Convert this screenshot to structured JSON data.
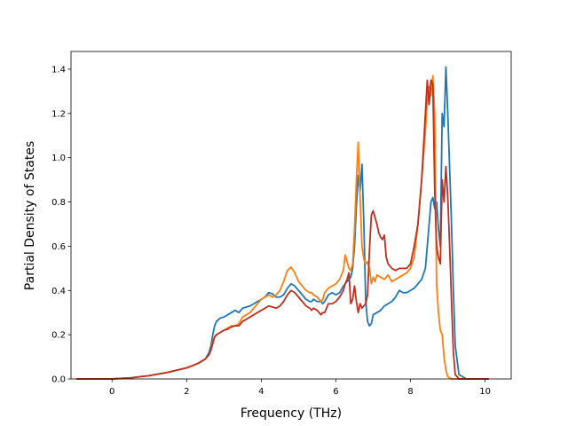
{
  "chart_data": {
    "type": "line",
    "title": "",
    "xlabel": "Frequency (THz)",
    "ylabel": "Partial Density of States",
    "xlim": [
      -1.1,
      10.7
    ],
    "ylim": [
      0.0,
      1.48
    ],
    "xticks": [
      0,
      2,
      4,
      6,
      8,
      10
    ],
    "xtick_labels": [
      "0",
      "2",
      "4",
      "6",
      "8",
      "10"
    ],
    "yticks": [
      0.0,
      0.2,
      0.4,
      0.6,
      0.8,
      1.0,
      1.2,
      1.4
    ],
    "ytick_labels": [
      "0.0",
      "0.2",
      "0.4",
      "0.6",
      "0.8",
      "1.0",
      "1.2",
      "1.4"
    ],
    "grid": false,
    "series": [
      {
        "color": "#1f77b4",
        "points": [
          [
            -0.95,
            0.0
          ],
          [
            0.0,
            0.0
          ],
          [
            0.5,
            0.005
          ],
          [
            1.0,
            0.015
          ],
          [
            1.5,
            0.03
          ],
          [
            2.0,
            0.05
          ],
          [
            2.3,
            0.07
          ],
          [
            2.5,
            0.09
          ],
          [
            2.6,
            0.12
          ],
          [
            2.65,
            0.15
          ],
          [
            2.7,
            0.2
          ],
          [
            2.75,
            0.24
          ],
          [
            2.8,
            0.26
          ],
          [
            2.9,
            0.275
          ],
          [
            3.0,
            0.28
          ],
          [
            3.1,
            0.29
          ],
          [
            3.2,
            0.3
          ],
          [
            3.3,
            0.31
          ],
          [
            3.4,
            0.3
          ],
          [
            3.5,
            0.32
          ],
          [
            3.6,
            0.325
          ],
          [
            3.7,
            0.33
          ],
          [
            3.8,
            0.34
          ],
          [
            3.9,
            0.35
          ],
          [
            4.0,
            0.36
          ],
          [
            4.1,
            0.37
          ],
          [
            4.2,
            0.39
          ],
          [
            4.3,
            0.385
          ],
          [
            4.4,
            0.37
          ],
          [
            4.5,
            0.37
          ],
          [
            4.6,
            0.38
          ],
          [
            4.7,
            0.41
          ],
          [
            4.8,
            0.43
          ],
          [
            4.9,
            0.42
          ],
          [
            5.0,
            0.4
          ],
          [
            5.1,
            0.38
          ],
          [
            5.2,
            0.36
          ],
          [
            5.3,
            0.35
          ],
          [
            5.35,
            0.35
          ],
          [
            5.4,
            0.36
          ],
          [
            5.5,
            0.35
          ],
          [
            5.6,
            0.35
          ],
          [
            5.65,
            0.34
          ],
          [
            5.7,
            0.35
          ],
          [
            5.8,
            0.38
          ],
          [
            5.9,
            0.39
          ],
          [
            6.0,
            0.38
          ],
          [
            6.1,
            0.39
          ],
          [
            6.2,
            0.42
          ],
          [
            6.3,
            0.44
          ],
          [
            6.4,
            0.46
          ],
          [
            6.45,
            0.5
          ],
          [
            6.5,
            0.6
          ],
          [
            6.55,
            0.78
          ],
          [
            6.6,
            0.92
          ],
          [
            6.65,
            0.85
          ],
          [
            6.7,
            0.97
          ],
          [
            6.75,
            0.7
          ],
          [
            6.8,
            0.35
          ],
          [
            6.85,
            0.26
          ],
          [
            6.9,
            0.24
          ],
          [
            6.95,
            0.25
          ],
          [
            7.0,
            0.29
          ],
          [
            7.1,
            0.3
          ],
          [
            7.2,
            0.31
          ],
          [
            7.3,
            0.33
          ],
          [
            7.4,
            0.34
          ],
          [
            7.5,
            0.35
          ],
          [
            7.6,
            0.37
          ],
          [
            7.7,
            0.4
          ],
          [
            7.8,
            0.39
          ],
          [
            7.9,
            0.39
          ],
          [
            8.0,
            0.4
          ],
          [
            8.1,
            0.41
          ],
          [
            8.2,
            0.43
          ],
          [
            8.3,
            0.45
          ],
          [
            8.4,
            0.5
          ],
          [
            8.5,
            0.7
          ],
          [
            8.55,
            0.8
          ],
          [
            8.6,
            0.82
          ],
          [
            8.65,
            0.77
          ],
          [
            8.7,
            0.8
          ],
          [
            8.75,
            0.68
          ],
          [
            8.8,
            0.6
          ],
          [
            8.85,
            1.2
          ],
          [
            8.9,
            1.14
          ],
          [
            8.95,
            1.41
          ],
          [
            9.0,
            1.2
          ],
          [
            9.05,
            0.95
          ],
          [
            9.1,
            0.7
          ],
          [
            9.15,
            0.4
          ],
          [
            9.2,
            0.15
          ],
          [
            9.3,
            0.02
          ],
          [
            9.5,
            0.0
          ],
          [
            10.0,
            0.0
          ],
          [
            10.1,
            0.0
          ]
        ]
      },
      {
        "color": "#ff7f0e",
        "points": [
          [
            -0.95,
            0.0
          ],
          [
            0.0,
            0.0
          ],
          [
            0.5,
            0.005
          ],
          [
            1.0,
            0.015
          ],
          [
            1.5,
            0.03
          ],
          [
            2.0,
            0.05
          ],
          [
            2.3,
            0.07
          ],
          [
            2.5,
            0.09
          ],
          [
            2.6,
            0.11
          ],
          [
            2.65,
            0.13
          ],
          [
            2.7,
            0.17
          ],
          [
            2.75,
            0.19
          ],
          [
            2.8,
            0.2
          ],
          [
            2.9,
            0.21
          ],
          [
            3.0,
            0.22
          ],
          [
            3.1,
            0.23
          ],
          [
            3.2,
            0.24
          ],
          [
            3.3,
            0.24
          ],
          [
            3.4,
            0.25
          ],
          [
            3.5,
            0.28
          ],
          [
            3.6,
            0.29
          ],
          [
            3.7,
            0.3
          ],
          [
            3.8,
            0.32
          ],
          [
            3.9,
            0.34
          ],
          [
            4.0,
            0.36
          ],
          [
            4.1,
            0.37
          ],
          [
            4.2,
            0.38
          ],
          [
            4.3,
            0.37
          ],
          [
            4.4,
            0.38
          ],
          [
            4.5,
            0.4
          ],
          [
            4.6,
            0.44
          ],
          [
            4.7,
            0.49
          ],
          [
            4.8,
            0.505
          ],
          [
            4.9,
            0.48
          ],
          [
            5.0,
            0.44
          ],
          [
            5.1,
            0.42
          ],
          [
            5.2,
            0.4
          ],
          [
            5.3,
            0.39
          ],
          [
            5.35,
            0.39
          ],
          [
            5.4,
            0.38
          ],
          [
            5.5,
            0.37
          ],
          [
            5.6,
            0.35
          ],
          [
            5.65,
            0.36
          ],
          [
            5.7,
            0.39
          ],
          [
            5.8,
            0.41
          ],
          [
            5.9,
            0.42
          ],
          [
            6.0,
            0.43
          ],
          [
            6.1,
            0.45
          ],
          [
            6.2,
            0.49
          ],
          [
            6.25,
            0.56
          ],
          [
            6.3,
            0.53
          ],
          [
            6.35,
            0.5
          ],
          [
            6.4,
            0.49
          ],
          [
            6.45,
            0.52
          ],
          [
            6.5,
            0.68
          ],
          [
            6.55,
            0.9
          ],
          [
            6.6,
            1.07
          ],
          [
            6.65,
            0.82
          ],
          [
            6.7,
            0.6
          ],
          [
            6.75,
            0.54
          ],
          [
            6.8,
            0.52
          ],
          [
            6.85,
            0.53
          ],
          [
            6.9,
            0.5
          ],
          [
            6.95,
            0.43
          ],
          [
            7.0,
            0.46
          ],
          [
            7.05,
            0.44
          ],
          [
            7.1,
            0.47
          ],
          [
            7.2,
            0.46
          ],
          [
            7.3,
            0.45
          ],
          [
            7.4,
            0.47
          ],
          [
            7.5,
            0.44
          ],
          [
            7.6,
            0.45
          ],
          [
            7.7,
            0.46
          ],
          [
            7.8,
            0.47
          ],
          [
            7.9,
            0.48
          ],
          [
            8.0,
            0.5
          ],
          [
            8.1,
            0.55
          ],
          [
            8.2,
            0.7
          ],
          [
            8.3,
            0.9
          ],
          [
            8.4,
            1.12
          ],
          [
            8.45,
            1.25
          ],
          [
            8.5,
            1.32
          ],
          [
            8.55,
            1.28
          ],
          [
            8.6,
            1.37
          ],
          [
            8.65,
            1.2
          ],
          [
            8.7,
            0.43
          ],
          [
            8.75,
            0.3
          ],
          [
            8.8,
            0.22
          ],
          [
            8.85,
            0.2
          ],
          [
            8.9,
            0.1
          ],
          [
            8.95,
            0.04
          ],
          [
            9.0,
            0.01
          ],
          [
            9.1,
            0.0
          ],
          [
            10.0,
            0.0
          ],
          [
            10.1,
            0.0
          ]
        ]
      },
      {
        "color": "#c0301e",
        "points": [
          [
            -0.95,
            0.0
          ],
          [
            0.0,
            0.0
          ],
          [
            0.5,
            0.005
          ],
          [
            1.0,
            0.015
          ],
          [
            1.5,
            0.03
          ],
          [
            2.0,
            0.05
          ],
          [
            2.3,
            0.07
          ],
          [
            2.5,
            0.09
          ],
          [
            2.6,
            0.11
          ],
          [
            2.65,
            0.13
          ],
          [
            2.7,
            0.16
          ],
          [
            2.75,
            0.19
          ],
          [
            2.8,
            0.2
          ],
          [
            2.9,
            0.21
          ],
          [
            3.0,
            0.22
          ],
          [
            3.1,
            0.225
          ],
          [
            3.2,
            0.235
          ],
          [
            3.3,
            0.24
          ],
          [
            3.4,
            0.24
          ],
          [
            3.5,
            0.26
          ],
          [
            3.6,
            0.27
          ],
          [
            3.7,
            0.28
          ],
          [
            3.8,
            0.29
          ],
          [
            3.9,
            0.3
          ],
          [
            4.0,
            0.31
          ],
          [
            4.1,
            0.32
          ],
          [
            4.2,
            0.33
          ],
          [
            4.3,
            0.325
          ],
          [
            4.4,
            0.32
          ],
          [
            4.5,
            0.33
          ],
          [
            4.6,
            0.35
          ],
          [
            4.7,
            0.38
          ],
          [
            4.8,
            0.4
          ],
          [
            4.9,
            0.39
          ],
          [
            5.0,
            0.37
          ],
          [
            5.1,
            0.35
          ],
          [
            5.2,
            0.33
          ],
          [
            5.3,
            0.32
          ],
          [
            5.35,
            0.31
          ],
          [
            5.4,
            0.32
          ],
          [
            5.5,
            0.31
          ],
          [
            5.6,
            0.29
          ],
          [
            5.65,
            0.3
          ],
          [
            5.7,
            0.3
          ],
          [
            5.8,
            0.34
          ],
          [
            5.9,
            0.34
          ],
          [
            6.0,
            0.35
          ],
          [
            6.1,
            0.37
          ],
          [
            6.2,
            0.4
          ],
          [
            6.25,
            0.43
          ],
          [
            6.3,
            0.45
          ],
          [
            6.35,
            0.48
          ],
          [
            6.4,
            0.34
          ],
          [
            6.45,
            0.36
          ],
          [
            6.5,
            0.42
          ],
          [
            6.55,
            0.35
          ],
          [
            6.6,
            0.3
          ],
          [
            6.65,
            0.34
          ],
          [
            6.7,
            0.32
          ],
          [
            6.75,
            0.33
          ],
          [
            6.8,
            0.34
          ],
          [
            6.85,
            0.38
          ],
          [
            6.9,
            0.58
          ],
          [
            6.95,
            0.74
          ],
          [
            7.0,
            0.76
          ],
          [
            7.05,
            0.73
          ],
          [
            7.1,
            0.7
          ],
          [
            7.15,
            0.66
          ],
          [
            7.2,
            0.64
          ],
          [
            7.25,
            0.63
          ],
          [
            7.3,
            0.65
          ],
          [
            7.35,
            0.55
          ],
          [
            7.4,
            0.52
          ],
          [
            7.5,
            0.5
          ],
          [
            7.6,
            0.49
          ],
          [
            7.7,
            0.5
          ],
          [
            7.8,
            0.5
          ],
          [
            7.9,
            0.5
          ],
          [
            8.0,
            0.52
          ],
          [
            8.1,
            0.6
          ],
          [
            8.2,
            0.7
          ],
          [
            8.3,
            0.9
          ],
          [
            8.4,
            1.2
          ],
          [
            8.45,
            1.35
          ],
          [
            8.5,
            1.24
          ],
          [
            8.55,
            1.35
          ],
          [
            8.6,
            1.33
          ],
          [
            8.65,
            0.85
          ],
          [
            8.7,
            0.6
          ],
          [
            8.75,
            0.55
          ],
          [
            8.8,
            0.52
          ],
          [
            8.85,
            0.9
          ],
          [
            8.9,
            0.8
          ],
          [
            8.95,
            0.96
          ],
          [
            9.0,
            0.82
          ],
          [
            9.05,
            0.6
          ],
          [
            9.1,
            0.35
          ],
          [
            9.15,
            0.12
          ],
          [
            9.2,
            0.02
          ],
          [
            9.3,
            0.0
          ],
          [
            10.0,
            0.0
          ],
          [
            10.1,
            0.0
          ]
        ]
      }
    ]
  }
}
